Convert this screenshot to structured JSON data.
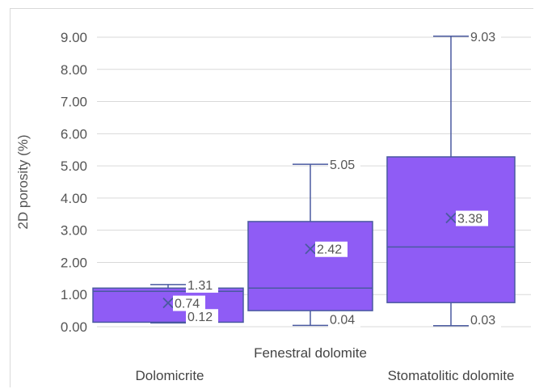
{
  "chart_data": {
    "type": "box",
    "ylabel": "2D porosity (%)",
    "ylim": [
      0,
      9.5
    ],
    "yticks": [
      "0.00",
      "1.00",
      "2.00",
      "3.00",
      "4.00",
      "5.00",
      "6.00",
      "7.00",
      "8.00",
      "9.00"
    ],
    "grid": true,
    "categories": [
      "Dolomicrite",
      "Fenestral dolomite",
      "Stomatolitic dolomite"
    ],
    "boxes": [
      {
        "category": "Dolomicrite",
        "min": 0.12,
        "q1": 0.14,
        "median": 1.1,
        "q3": 1.2,
        "max": 1.31,
        "mean": 0.74,
        "labels": {
          "max": "1.31",
          "mean": "0.74",
          "min": "0.12"
        }
      },
      {
        "category": "Fenestral dolomite",
        "min": 0.04,
        "q1": 0.5,
        "median": 1.2,
        "q3": 3.27,
        "max": 5.05,
        "mean": 2.42,
        "labels": {
          "max": "5.05",
          "mean": "2.42",
          "min": "0.04"
        }
      },
      {
        "category": "Stomatolitic dolomite",
        "min": 0.03,
        "q1": 0.75,
        "median": 2.48,
        "q3": 5.28,
        "max": 9.03,
        "mean": 3.38,
        "labels": {
          "max": "9.03",
          "mean": "3.38",
          "min": "0.03"
        }
      }
    ],
    "colors": {
      "box_fill": "#8f5cf5",
      "box_stroke": "#4a5aa0",
      "grid": "#d9d9d9"
    }
  }
}
